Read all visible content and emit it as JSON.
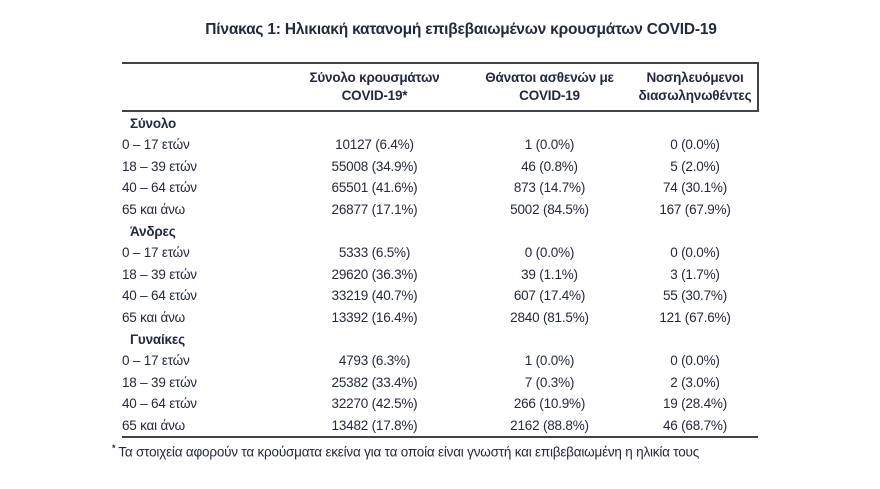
{
  "title": "Πίνακας 1: Ηλικιακή κατανομή επιβεβαιωμένων κρουσμάτων COVID-19",
  "table": {
    "column_headers": [
      {
        "line1": "Σύνολο κρουσμάτων",
        "line2": "COVID-19*"
      },
      {
        "line1": "Θάνατοι ασθενών με",
        "line2": "COVID-19"
      },
      {
        "line1": "Νοσηλευόμενοι",
        "line2": "διασωληνωθέντες"
      }
    ],
    "sections": [
      {
        "label": "Σύνολο",
        "rows": [
          {
            "age": "0 – 17 ετών",
            "cases": "10127 (6.4%)",
            "deaths": "1 (0.0%)",
            "intubated": "0 (0.0%)"
          },
          {
            "age": "18 – 39 ετών",
            "cases": "55008 (34.9%)",
            "deaths": "46 (0.8%)",
            "intubated": "5 (2.0%)"
          },
          {
            "age": "40 – 64 ετών",
            "cases": "65501 (41.6%)",
            "deaths": "873 (14.7%)",
            "intubated": "74 (30.1%)"
          },
          {
            "age": "65 και άνω",
            "cases": "26877 (17.1%)",
            "deaths": "5002 (84.5%)",
            "intubated": "167 (67.9%)"
          }
        ]
      },
      {
        "label": "Άνδρες",
        "rows": [
          {
            "age": "0 – 17 ετών",
            "cases": "5333 (6.5%)",
            "deaths": "0 (0.0%)",
            "intubated": "0 (0.0%)"
          },
          {
            "age": "18 – 39 ετών",
            "cases": "29620 (36.3%)",
            "deaths": "39 (1.1%)",
            "intubated": "3 (1.7%)"
          },
          {
            "age": "40 – 64 ετών",
            "cases": "33219 (40.7%)",
            "deaths": "607 (17.4%)",
            "intubated": "55 (30.7%)"
          },
          {
            "age": "65 και άνω",
            "cases": "13392 (16.4%)",
            "deaths": "2840 (81.5%)",
            "intubated": "121 (67.6%)"
          }
        ]
      },
      {
        "label": "Γυναίκες",
        "rows": [
          {
            "age": "0 – 17 ετών",
            "cases": "4793 (6.3%)",
            "deaths": "1 (0.0%)",
            "intubated": "0 (0.0%)"
          },
          {
            "age": "18 – 39 ετών",
            "cases": "25382 (33.4%)",
            "deaths": "7 (0.3%)",
            "intubated": "2 (3.0%)"
          },
          {
            "age": "40 – 64 ετών",
            "cases": "32270 (42.5%)",
            "deaths": "266 (10.9%)",
            "intubated": "19 (28.4%)"
          },
          {
            "age": "65 και άνω",
            "cases": "13482 (17.8%)",
            "deaths": "2162 (88.8%)",
            "intubated": "46 (68.7%)"
          }
        ]
      }
    ]
  },
  "footnote": {
    "marker": "*",
    "text": "Τα στοιχεία αφορούν τα κρούσματα εκείνα για τα οποία είναι γνωστή και επιβεβαιωμένη η ηλικία τους"
  },
  "colors": {
    "text": "#232a40",
    "rule": "#3f444b",
    "background": "#ffffff"
  }
}
